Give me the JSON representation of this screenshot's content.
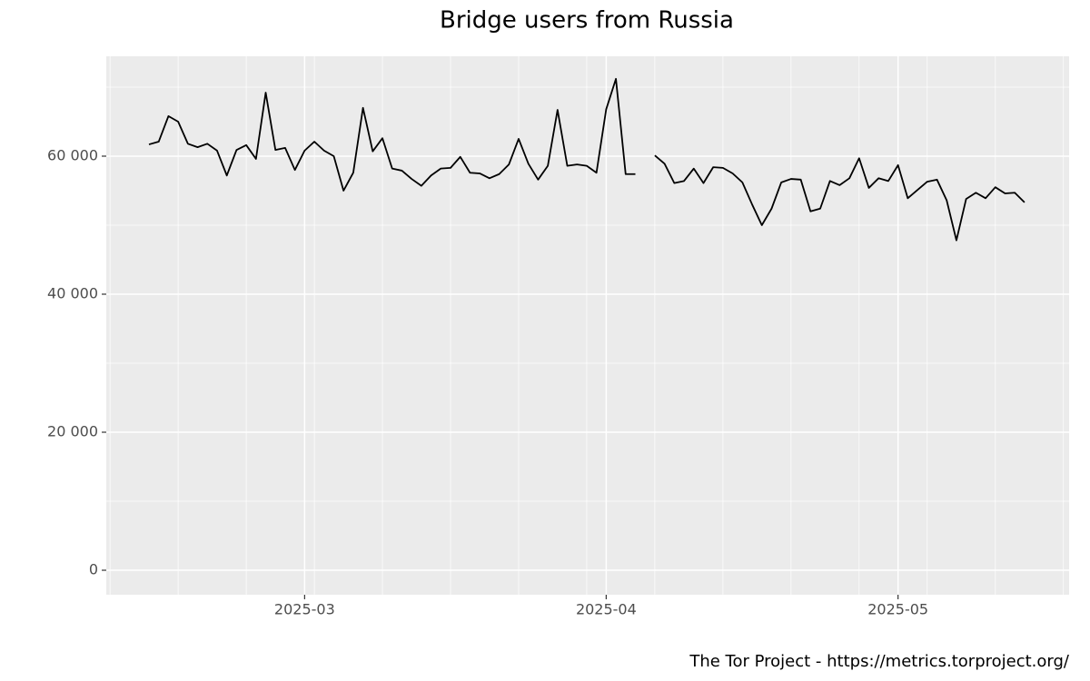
{
  "chart_data": {
    "type": "line",
    "title": "Bridge users from Russia",
    "caption": "The Tor Project - https://metrics.torproject.org/",
    "categories": [
      null,
      null,
      null,
      null,
      null,
      null,
      null,
      null,
      null,
      null,
      null,
      null,
      null,
      null,
      null,
      null,
      "2025-03",
      null,
      null,
      null,
      null,
      null,
      null,
      null,
      null,
      null,
      null,
      null,
      null,
      null,
      null,
      null,
      null,
      null,
      null,
      null,
      null,
      null,
      null,
      null,
      null,
      null,
      null,
      null,
      null,
      null,
      null,
      "2025-04",
      null,
      null,
      null,
      null,
      null,
      null,
      null,
      null,
      null,
      null,
      null,
      null,
      null,
      null,
      null,
      null,
      null,
      null,
      null,
      null,
      null,
      null,
      null,
      null,
      null,
      null,
      null,
      null,
      null,
      "2025-05",
      null,
      null,
      null,
      null,
      null,
      null,
      null,
      null,
      null,
      null,
      null,
      null,
      null
    ],
    "values": [
      61700,
      62100,
      65800,
      65000,
      61800,
      61300,
      61800,
      60800,
      57200,
      60900,
      61600,
      59600,
      69200,
      60900,
      61200,
      58000,
      60800,
      62100,
      60800,
      60000,
      55000,
      57600,
      67000,
      60700,
      62600,
      58200,
      57900,
      56700,
      55700,
      57200,
      58200,
      58300,
      59900,
      57600,
      57500,
      56800,
      57400,
      58800,
      62500,
      58900,
      56600,
      58600,
      66700,
      58600,
      58800,
      58600,
      57600,
      66800,
      71200,
      57400,
      57400,
      null,
      60100,
      58900,
      56100,
      56400,
      58200,
      56100,
      58400,
      58300,
      57500,
      56200,
      53000,
      50000,
      52400,
      56200,
      56700,
      56600,
      52000,
      52400,
      56400,
      55800,
      56800,
      59700,
      55400,
      56800,
      56400,
      58700,
      53900,
      55100,
      56300,
      56600,
      53600,
      47800,
      53800,
      54700,
      53900,
      55500,
      54600,
      54700,
      53300
    ],
    "color": "#000000",
    "ylim": [
      -3550,
      74470
    ],
    "yticks": [
      0,
      {
        "value": 20000,
        "label": "20 000"
      },
      {
        "value": 40000,
        "label": "40 000"
      },
      {
        "value": 60000,
        "label": "60 000"
      }
    ],
    "grid": true,
    "background": "#ebebeb"
  }
}
